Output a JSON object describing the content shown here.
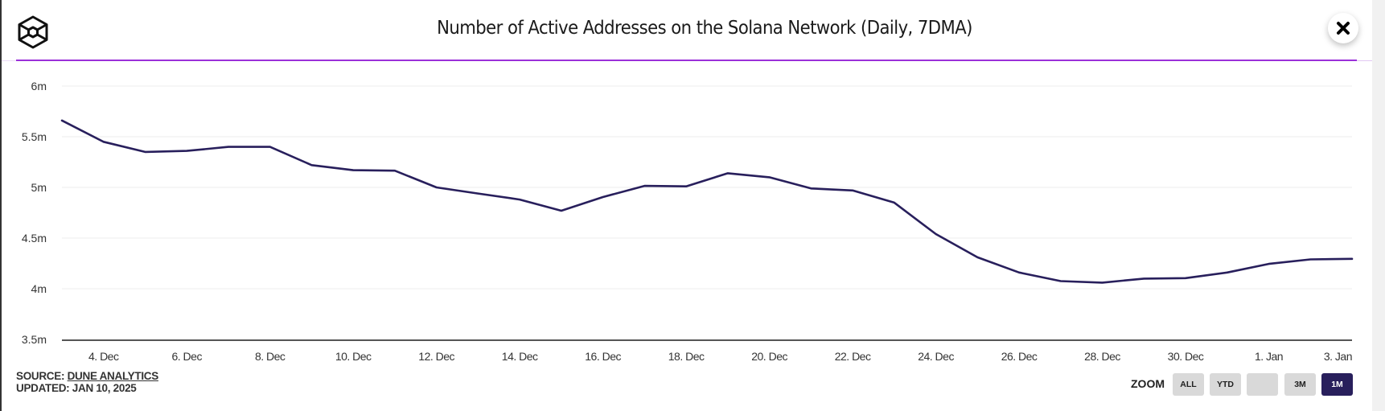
{
  "header": {
    "title": "Number of Active Addresses on the Solana Network (Daily, 7DMA)",
    "logo_icon": "cube-logo-icon",
    "close_icon": "close-icon"
  },
  "footer": {
    "source_label": "SOURCE:",
    "source_link": "DUNE ANALYTICS",
    "updated": "UPDATED: JAN 10, 2025"
  },
  "zoom": {
    "label": "ZOOM",
    "buttons": [
      {
        "label": "ALL",
        "active": false
      },
      {
        "label": "YTD",
        "active": false
      },
      {
        "label": "",
        "active": false
      },
      {
        "label": "3M",
        "active": false
      },
      {
        "label": "1M",
        "active": true
      }
    ]
  },
  "colors": {
    "accent": "#9b30d9",
    "line": "#281f5c",
    "active_button": "#281f5c",
    "gridline": "#ececec",
    "axis": "#555555"
  },
  "chart_data": {
    "type": "line",
    "title": "Number of Active Addresses on the Solana Network (Daily, 7DMA)",
    "xlabel": "",
    "ylabel": "",
    "ylim": [
      3.5,
      6
    ],
    "y_unit": "m",
    "grid": true,
    "legend": "none",
    "y_ticks": [
      "3.5m",
      "4m",
      "4.5m",
      "5m",
      "5.5m",
      "6m"
    ],
    "y_tick_values": [
      3.5,
      4,
      4.5,
      5,
      5.5,
      6
    ],
    "x_ticks": [
      "4. Dec",
      "6. Dec",
      "8. Dec",
      "10. Dec",
      "12. Dec",
      "14. Dec",
      "16. Dec",
      "18. Dec",
      "20. Dec",
      "22. Dec",
      "24. Dec",
      "26. Dec",
      "28. Dec",
      "30. Dec",
      "1. Jan",
      "3. Jan"
    ],
    "x_tick_index": [
      1,
      3,
      5,
      7,
      9,
      11,
      13,
      15,
      17,
      19,
      21,
      23,
      25,
      27,
      29,
      31
    ],
    "x": [
      "3 Dec",
      "4 Dec",
      "5 Dec",
      "6 Dec",
      "7 Dec",
      "8 Dec",
      "9 Dec",
      "10 Dec",
      "11 Dec",
      "12 Dec",
      "13 Dec",
      "14 Dec",
      "15 Dec",
      "16 Dec",
      "17 Dec",
      "18 Dec",
      "19 Dec",
      "20 Dec",
      "21 Dec",
      "22 Dec",
      "23 Dec",
      "24 Dec",
      "25 Dec",
      "26 Dec",
      "27 Dec",
      "28 Dec",
      "29 Dec",
      "30 Dec",
      "31 Dec",
      "1 Jan",
      "2 Jan",
      "3 Jan"
    ],
    "series": [
      {
        "name": "Active Addresses (7DMA, millions)",
        "values": [
          5.66,
          5.45,
          5.35,
          5.36,
          5.4,
          5.4,
          5.22,
          5.17,
          5.165,
          5.0,
          4.94,
          4.88,
          4.77,
          4.905,
          5.015,
          5.01,
          5.14,
          5.1,
          4.99,
          4.97,
          4.85,
          4.54,
          4.31,
          4.16,
          4.075,
          4.06,
          4.1,
          4.105,
          4.16,
          4.245,
          4.29,
          4.295
        ]
      }
    ]
  }
}
